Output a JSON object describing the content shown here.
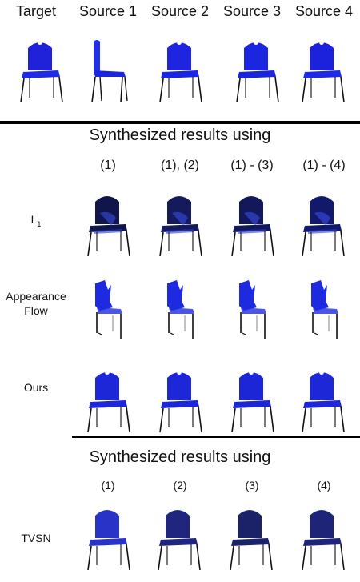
{
  "top_row": {
    "headers": [
      "Target",
      "Source 1",
      "Source 2",
      "Source 3",
      "Source 4"
    ],
    "chairs": [
      {
        "name": "target-chair",
        "view": "front-left",
        "seat": "#1d2be8",
        "back": "#1f22d9"
      },
      {
        "name": "source1-chair",
        "view": "side",
        "seat": "#1a25df",
        "back": "#2030e6"
      },
      {
        "name": "source2-chair",
        "view": "front",
        "seat": "#1a26e6",
        "back": "#1f24e0"
      },
      {
        "name": "source3-chair",
        "view": "front-left",
        "seat": "#1a25df",
        "back": "#1c26e0"
      },
      {
        "name": "source4-chair",
        "view": "front-right",
        "seat": "#1d2be8",
        "back": "#1c22db"
      }
    ]
  },
  "section1": {
    "title": "Synthesized results using",
    "columns": [
      "(1)",
      "(1), (2)",
      "(1) - (3)",
      "(1) - (4)"
    ],
    "rows": [
      {
        "label_main": "L",
        "label_sub": "1",
        "style": "dark",
        "colors": [
          "#10164a",
          "#141a5a",
          "#12185a",
          "#12186a"
        ]
      },
      {
        "label_main": "Appearance",
        "label_second": "Flow",
        "style": "broken",
        "colors": [
          "#1e2ae0",
          "#1e2ae0",
          "#1e2ae0",
          "#1e2ae0"
        ]
      },
      {
        "label_main": "Ours",
        "style": "clean",
        "colors": [
          "#1d27d8",
          "#1d27d8",
          "#1c26d6",
          "#1d27d8"
        ]
      }
    ]
  },
  "section2": {
    "title": "Synthesized results using",
    "columns": [
      "(1)",
      "(2)",
      "(3)",
      "(4)"
    ],
    "row": {
      "label": "TVSN",
      "colors": [
        "#2a33c8",
        "#20267e",
        "#1b2268",
        "#1e2478"
      ]
    }
  }
}
